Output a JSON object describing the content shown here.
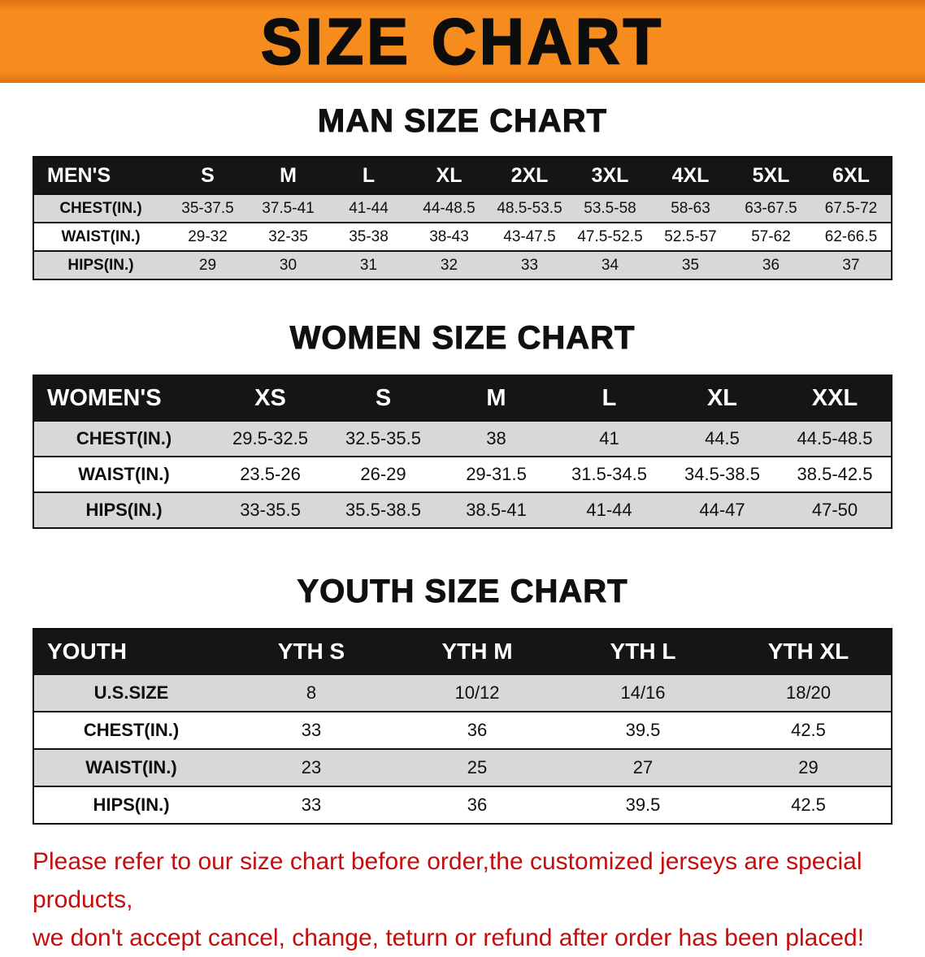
{
  "banner": {
    "title": "SIZE CHART"
  },
  "colors": {
    "banner_orange": "#f78c1e",
    "table_header_black": "#151515",
    "row_gray": "#d8d8d8",
    "disclaimer_red": "#c40d0d"
  },
  "sections": {
    "man": {
      "heading": "MAN SIZE CHART",
      "table": {
        "header": [
          "MEN'S",
          "S",
          "M",
          "L",
          "XL",
          "2XL",
          "3XL",
          "4XL",
          "5XL",
          "6XL"
        ],
        "rows": [
          {
            "label": "CHEST(IN.)",
            "values": [
              "35-37.5",
              "37.5-41",
              "41-44",
              "44-48.5",
              "48.5-53.5",
              "53.5-58",
              "58-63",
              "63-67.5",
              "67.5-72"
            ]
          },
          {
            "label": "WAIST(IN.)",
            "values": [
              "29-32",
              "32-35",
              "35-38",
              "38-43",
              "43-47.5",
              "47.5-52.5",
              "52.5-57",
              "57-62",
              "62-66.5"
            ]
          },
          {
            "label": "HIPS(IN.)",
            "values": [
              "29",
              "30",
              "31",
              "32",
              "33",
              "34",
              "35",
              "36",
              "37"
            ]
          }
        ]
      }
    },
    "women": {
      "heading": "WOMEN SIZE CHART",
      "table": {
        "header": [
          "WOMEN'S",
          "XS",
          "S",
          "M",
          "L",
          "XL",
          "XXL"
        ],
        "rows": [
          {
            "label": "CHEST(IN.)",
            "values": [
              "29.5-32.5",
              "32.5-35.5",
              "38",
              "41",
              "44.5",
              "44.5-48.5"
            ]
          },
          {
            "label": "WAIST(IN.)",
            "values": [
              "23.5-26",
              "26-29",
              "29-31.5",
              "31.5-34.5",
              "34.5-38.5",
              "38.5-42.5"
            ]
          },
          {
            "label": "HIPS(IN.)",
            "values": [
              "33-35.5",
              "35.5-38.5",
              "38.5-41",
              "41-44",
              "44-47",
              "47-50"
            ]
          }
        ]
      }
    },
    "youth": {
      "heading": "YOUTH SIZE CHART",
      "table": {
        "header": [
          "YOUTH",
          "YTH S",
          "YTH M",
          "YTH L",
          "YTH XL"
        ],
        "rows": [
          {
            "label": "U.S.SIZE",
            "values": [
              "8",
              "10/12",
              "14/16",
              "18/20"
            ]
          },
          {
            "label": "CHEST(IN.)",
            "values": [
              "33",
              "36",
              "39.5",
              "42.5"
            ]
          },
          {
            "label": "WAIST(IN.)",
            "values": [
              "23",
              "25",
              "27",
              "29"
            ]
          },
          {
            "label": "HIPS(IN.)",
            "values": [
              "33",
              "36",
              "39.5",
              "42.5"
            ]
          }
        ]
      }
    }
  },
  "disclaimer": {
    "line1": "Please refer to our size chart before order,the customized jerseys are special products,",
    "line2": "we don't accept cancel, change, teturn or refund after order has been placed!"
  }
}
